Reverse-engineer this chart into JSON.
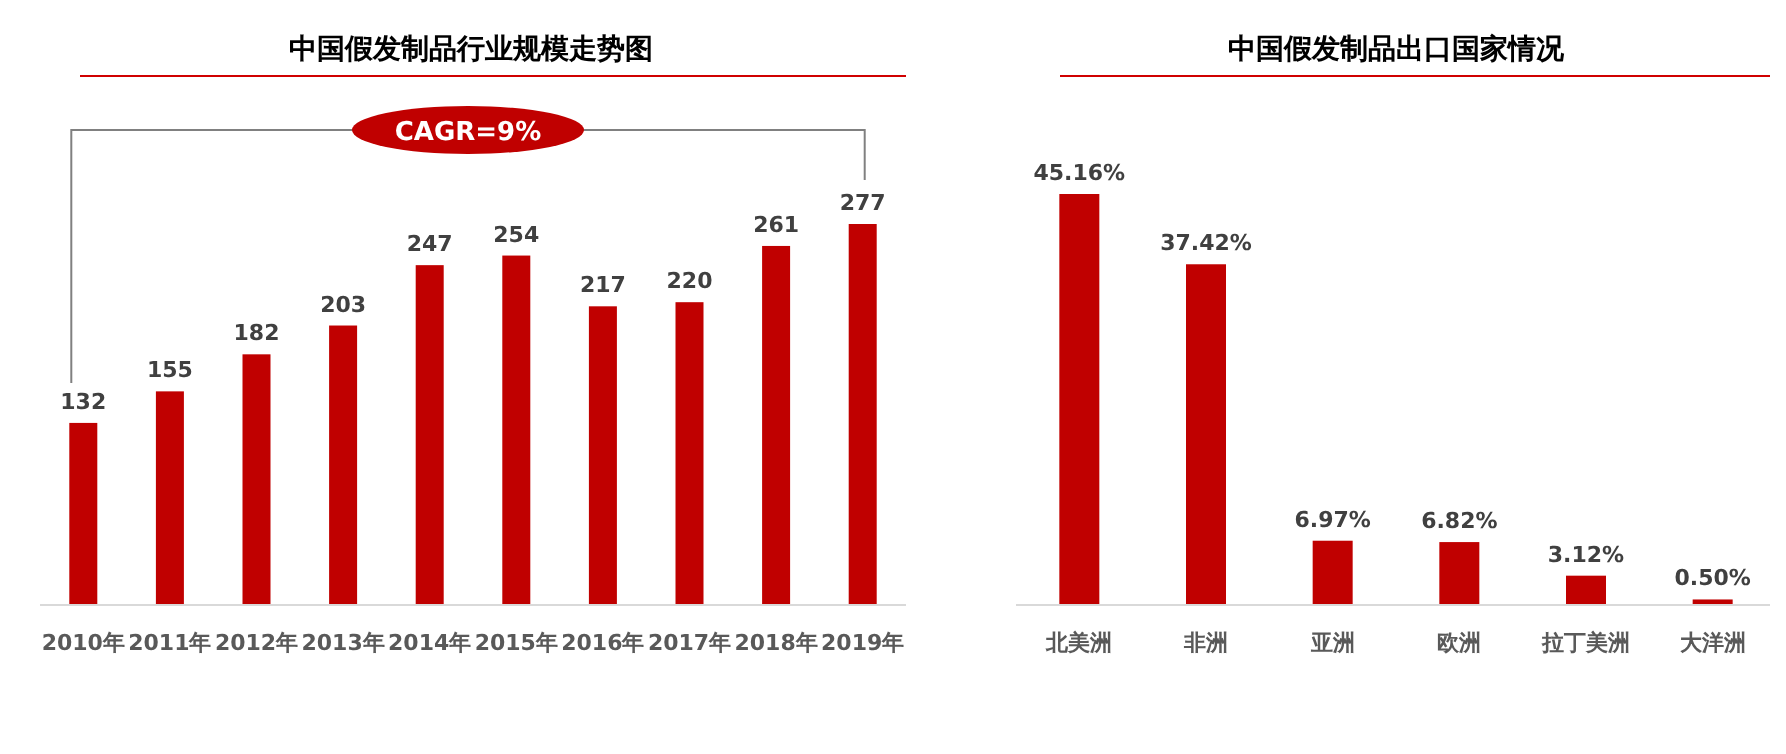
{
  "chart_data": [
    {
      "type": "bar",
      "title": "中国假发制品行业规模走势图",
      "categories": [
        "2010年",
        "2011年",
        "2012年",
        "2013年",
        "2014年",
        "2015年",
        "2016年",
        "2017年",
        "2018年",
        "2019年"
      ],
      "values": [
        132,
        155,
        182,
        203,
        247,
        254,
        217,
        220,
        261,
        277
      ],
      "color": "#c00000",
      "data_labels": true,
      "annotations": [
        "CAGR=9%"
      ]
    },
    {
      "type": "bar",
      "title": "中国假发制品出口国家情况",
      "categories": [
        "北美洲",
        "非洲",
        "亚洲",
        "欧洲",
        "拉丁美洲",
        "大洋洲"
      ],
      "values": [
        45.16,
        37.42,
        6.97,
        6.82,
        3.12,
        0.5
      ],
      "value_labels": [
        "45.16%",
        "37.42%",
        "6.97%",
        "6.82%",
        "3.12%",
        "0.50%"
      ],
      "color": "#c00000"
    }
  ]
}
